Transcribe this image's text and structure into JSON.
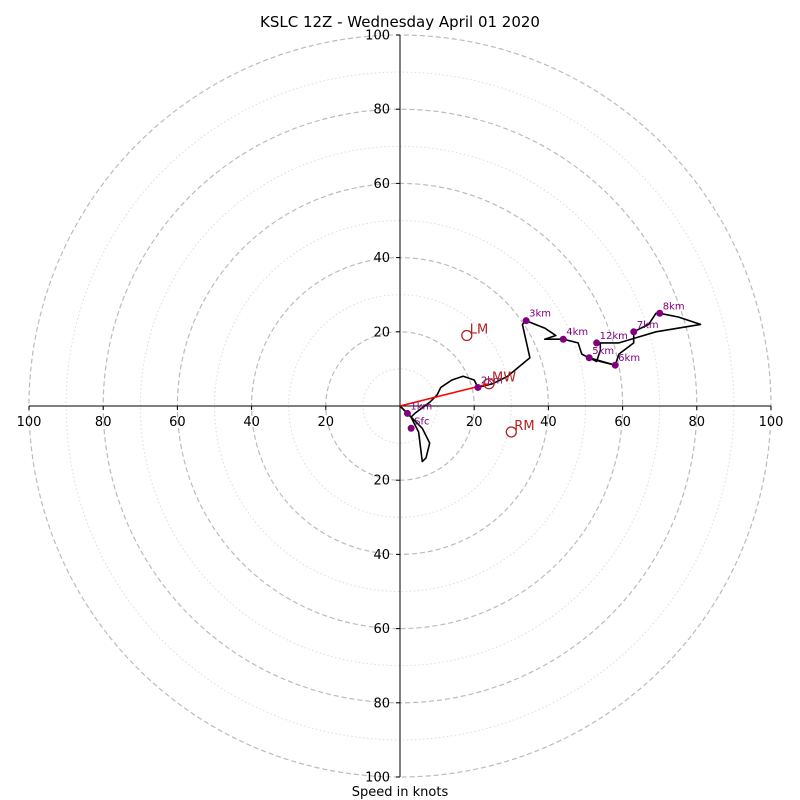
{
  "chart_data": {
    "type": "scatter",
    "subtype": "hodograph",
    "title": "KSLC 12Z - Wednesday April 01 2020",
    "xlabel": "Speed in knots",
    "xlim": [
      -100,
      100
    ],
    "ylim": [
      -100,
      100
    ],
    "major_rings": [
      20,
      40,
      60,
      80,
      100
    ],
    "minor_rings": [
      10,
      30,
      50,
      70,
      90
    ],
    "x_ticks": [
      "100",
      "80",
      "60",
      "40",
      "20",
      "20",
      "40",
      "60",
      "80",
      "100"
    ],
    "x_tick_values": [
      -100,
      -80,
      -60,
      -40,
      -20,
      20,
      40,
      60,
      80,
      100
    ],
    "y_ticks": [
      "100",
      "80",
      "60",
      "40",
      "20",
      "20",
      "40",
      "60",
      "80",
      "100"
    ],
    "y_tick_values": [
      100,
      80,
      60,
      40,
      20,
      -20,
      -40,
      -60,
      -80,
      -100
    ],
    "grid": true,
    "colors": {
      "trace": "#000000",
      "markers": "#800080",
      "points": "#b22222",
      "mean_wind_vector": "#ff0000",
      "major_grid": "#bbbbbb",
      "minor_grid": "#dddddd"
    },
    "hodograph_trace": [
      [
        0,
        0
      ],
      [
        1,
        -1
      ],
      [
        2,
        -2
      ],
      [
        3,
        -3
      ],
      [
        4,
        -2
      ],
      [
        8,
        1
      ],
      [
        10,
        3
      ],
      [
        11,
        5
      ],
      [
        14,
        7
      ],
      [
        17,
        8
      ],
      [
        20,
        7
      ],
      [
        21,
        5
      ],
      [
        25,
        6
      ],
      [
        29,
        8
      ],
      [
        35,
        13
      ],
      [
        33,
        22
      ],
      [
        34,
        23
      ],
      [
        39,
        21
      ],
      [
        42,
        19
      ],
      [
        39,
        18
      ],
      [
        44,
        18
      ],
      [
        48,
        17
      ],
      [
        49,
        14
      ],
      [
        51,
        13
      ],
      [
        54,
        12
      ],
      [
        58,
        11
      ],
      [
        59,
        14
      ],
      [
        63,
        17
      ],
      [
        63,
        20
      ],
      [
        67,
        22
      ],
      [
        69,
        25
      ],
      [
        70,
        25
      ],
      [
        75,
        24
      ],
      [
        81,
        22
      ],
      [
        69,
        20
      ],
      [
        59,
        17
      ],
      [
        54,
        17
      ],
      [
        54,
        15
      ],
      [
        53,
        12
      ],
      [
        51,
        13
      ],
      [
        58,
        11
      ]
    ],
    "surface_trace": [
      [
        0,
        0
      ],
      [
        3,
        -3
      ],
      [
        4,
        -5
      ],
      [
        5,
        -7
      ],
      [
        6,
        -15
      ],
      [
        7,
        -14
      ],
      [
        8,
        -10
      ],
      [
        6,
        -6
      ],
      [
        4,
        -4
      ],
      [
        3,
        -3
      ]
    ],
    "height_markers": [
      {
        "label": "Sfc",
        "u": 3,
        "v": -6
      },
      {
        "label": "1km",
        "u": 2,
        "v": -2
      },
      {
        "label": "2km",
        "u": 21,
        "v": 5
      },
      {
        "label": "3km",
        "u": 34,
        "v": 23
      },
      {
        "label": "4km",
        "u": 44,
        "v": 18
      },
      {
        "label": "5km",
        "u": 51,
        "v": 13
      },
      {
        "label": "6km",
        "u": 58,
        "v": 11
      },
      {
        "label": "7km",
        "u": 63,
        "v": 20
      },
      {
        "label": "8km",
        "u": 70,
        "v": 25
      },
      {
        "label": "12km",
        "u": 53,
        "v": 17
      }
    ],
    "special_points": [
      {
        "label": "LM",
        "u": 18,
        "v": 19
      },
      {
        "label": "MW",
        "u": 24,
        "v": 6
      },
      {
        "label": "RM",
        "u": 30,
        "v": -7
      }
    ],
    "mean_wind_vector": {
      "from": [
        0,
        0
      ],
      "to": [
        24,
        6
      ]
    }
  }
}
